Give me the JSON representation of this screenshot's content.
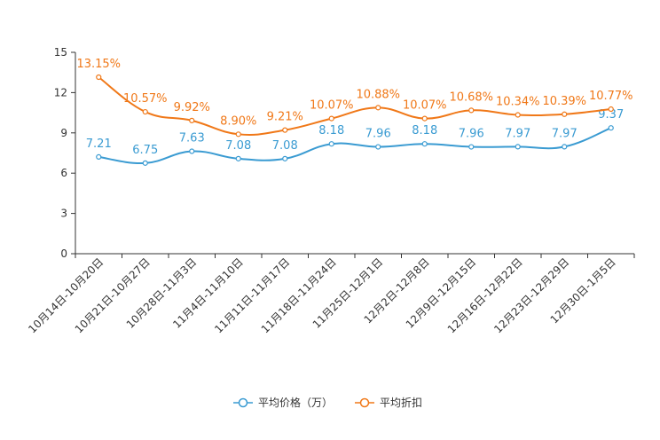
{
  "chart_data": {
    "type": "line",
    "categories": [
      "10月14日-10月20日",
      "10月21日-10月27日",
      "10月28日-11月3日",
      "11月4日-11月10日",
      "11月11日-11月17日",
      "11月18日-11月24日",
      "11月25日-12月1日",
      "12月2日-12月8日",
      "12月9日-12月15日",
      "12月16日-12月22日",
      "12月23日-12月29日",
      "12月30日-1月5日"
    ],
    "ylim": [
      0,
      15
    ],
    "yticks": [
      0,
      3,
      6,
      9,
      12,
      15
    ],
    "series": [
      {
        "name": "平均价格（万）",
        "color": "#3a9bd2",
        "values": [
          7.21,
          6.75,
          7.63,
          7.08,
          7.08,
          8.18,
          7.96,
          8.18,
          7.96,
          7.97,
          7.97,
          9.37
        ],
        "labels": [
          "7.21",
          "6.75",
          "7.63",
          "7.08",
          "7.08",
          "8.18",
          "7.96",
          "8.18",
          "7.96",
          "7.97",
          "7.97",
          "9.37"
        ]
      },
      {
        "name": "平均折扣",
        "color": "#f07818",
        "values": [
          13.15,
          10.57,
          9.92,
          8.9,
          9.21,
          10.07,
          10.88,
          10.07,
          10.68,
          10.34,
          10.39,
          10.77
        ],
        "labels": [
          "13.15%",
          "10.57%",
          "9.92%",
          "8.90%",
          "9.21%",
          "10.07%",
          "10.88%",
          "10.07%",
          "10.68%",
          "10.34%",
          "10.39%",
          "10.77%"
        ]
      }
    ],
    "legend_position": "bottom-center",
    "grid": false
  }
}
